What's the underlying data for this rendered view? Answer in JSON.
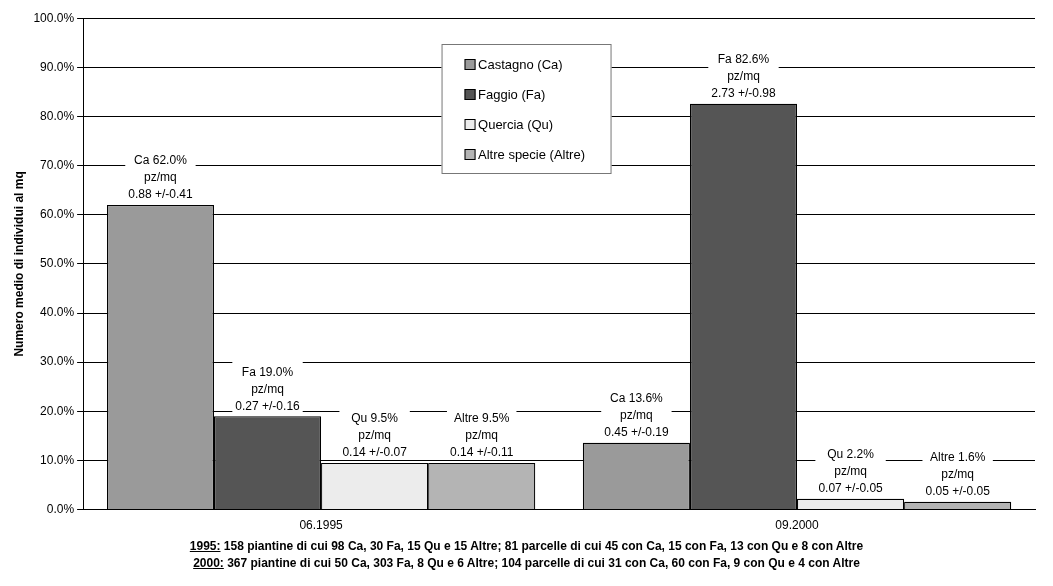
{
  "chart_data": {
    "type": "bar",
    "ylabel": "Numero medio di individui al mq",
    "categories": [
      "06.1995",
      "09.2000"
    ],
    "ylim": [
      0,
      100
    ],
    "yticks": [
      {
        "value": 0,
        "label": "0.0%"
      },
      {
        "value": 10,
        "label": "10.0%"
      },
      {
        "value": 20,
        "label": "20.0%"
      },
      {
        "value": 30,
        "label": "30.0%"
      },
      {
        "value": 40,
        "label": "40.0%"
      },
      {
        "value": 50,
        "label": "50.0%"
      },
      {
        "value": 60,
        "label": "60.0%"
      },
      {
        "value": 70,
        "label": "70.0%"
      },
      {
        "value": 80,
        "label": "80.0%"
      },
      {
        "value": 90,
        "label": "90.0%"
      },
      {
        "value": 100,
        "label": "100.0%"
      }
    ],
    "grid": "y",
    "legend": "top",
    "series": [
      {
        "name": "Castagno (Ca)",
        "color": "#9a9a9a",
        "values": [
          62.0,
          13.6
        ],
        "value_labels": [
          "Ca 62.0%\npz/mq\n0.88 +/-0.41",
          "Ca 13.6%\npz/mq\n0.45 +/-0.19"
        ]
      },
      {
        "name": "Faggio (Fa)",
        "color": "#555555",
        "values": [
          19.0,
          82.6
        ],
        "value_labels": [
          "Fa 19.0%\npz/mq\n0.27 +/-0.16",
          "Fa 82.6%\npz/mq\n2.73 +/-0.98"
        ]
      },
      {
        "name": "Quercia (Qu)",
        "color": "#ececec",
        "values": [
          9.5,
          2.2
        ],
        "value_labels": [
          "Qu 9.5%\npz/mq\n0.14 +/-0.07",
          "Qu 2.2%\npz/mq\n0.07 +/-0.05"
        ]
      },
      {
        "name": "Altre specie (Altre)",
        "color": "#b4b4b4",
        "values": [
          9.5,
          1.6
        ],
        "value_labels": [
          "Altre 9.5%\npz/mq\n0.14 +/-0.11",
          "Altre 1.6%\npz/mq\n0.05 +/-0.05"
        ]
      }
    ],
    "annotations": [
      "1995: 158 piantine di cui 98 Ca, 30 Fa, 15 Qu e 15 Altre; 81 parcelle di cui 45 con Ca, 15 con Fa, 13 con Qu e 8 con Altre",
      "2000: 367 piantine di cui 50 Ca, 303 Fa, 8 Qu e 6 Altre; 104 parcelle di cui 31 con Ca, 60 con Fa, 9 con Qu e 4 con Altre"
    ]
  }
}
